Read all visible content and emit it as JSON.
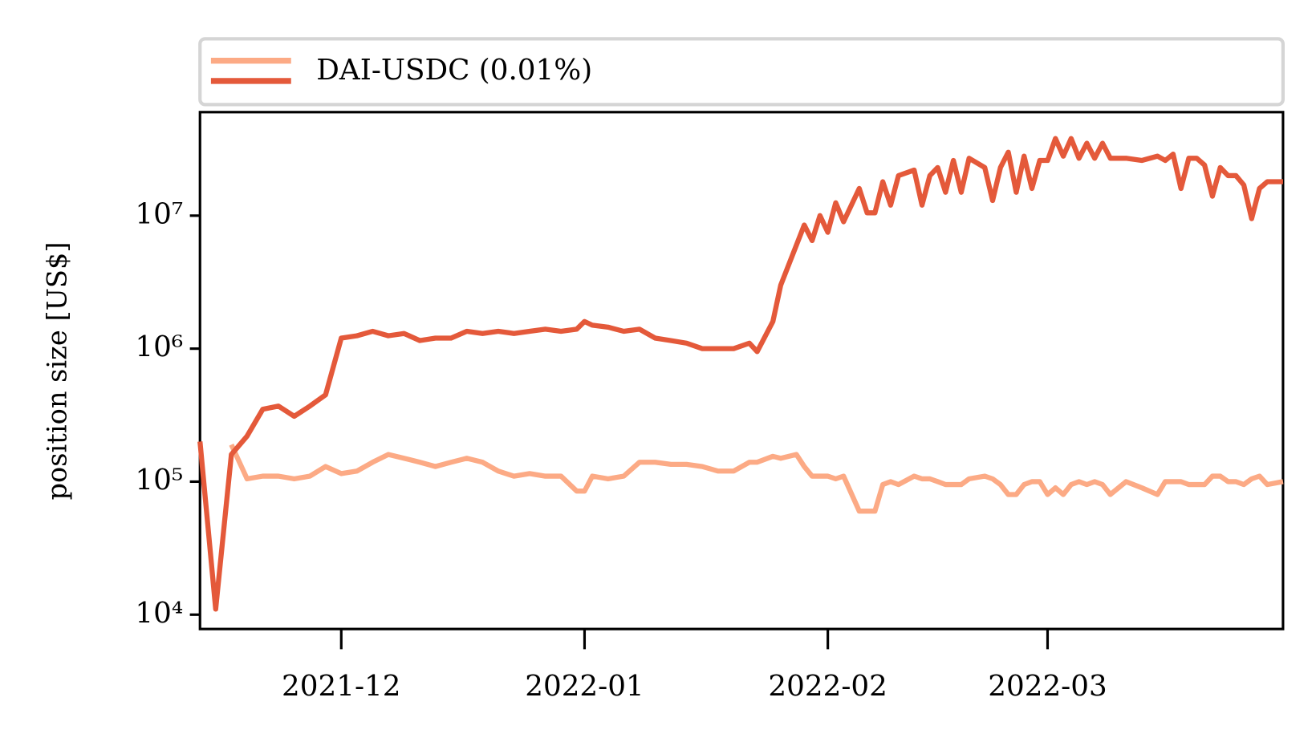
{
  "chart_data": {
    "type": "line",
    "ylabel": "position size [US$]",
    "log_y": true,
    "legend": {
      "label": "DAI-USDC (0.01%)",
      "loc": "upper outside"
    },
    "xlim": [
      "2021-11-13",
      "2022-03-31"
    ],
    "xticks": [
      {
        "value": "2021-12-01",
        "label": "2021-12"
      },
      {
        "value": "2022-01-01",
        "label": "2022-01"
      },
      {
        "value": "2022-02-01",
        "label": "2022-02"
      },
      {
        "value": "2022-03-01",
        "label": "2022-03"
      }
    ],
    "ylim": [
      7800,
      60000000
    ],
    "yticks": [
      {
        "value": 10000,
        "label": "10⁴"
      },
      {
        "value": 100000,
        "label": "10⁵"
      },
      {
        "value": 1000000,
        "label": "10⁶"
      },
      {
        "value": 10000000,
        "label": "10⁷"
      }
    ],
    "x": [
      "2021-11-13",
      "2021-11-15",
      "2021-11-17",
      "2021-11-19",
      "2021-11-21",
      "2021-11-23",
      "2021-11-25",
      "2021-11-27",
      "2021-11-29",
      "2021-12-01",
      "2021-12-03",
      "2021-12-05",
      "2021-12-07",
      "2021-12-09",
      "2021-12-11",
      "2021-12-13",
      "2021-12-15",
      "2021-12-17",
      "2021-12-19",
      "2021-12-21",
      "2021-12-23",
      "2021-12-25",
      "2021-12-27",
      "2021-12-29",
      "2021-12-31",
      "2022-01-01",
      "2022-01-02",
      "2022-01-04",
      "2022-01-06",
      "2022-01-08",
      "2022-01-10",
      "2022-01-12",
      "2022-01-14",
      "2022-01-16",
      "2022-01-18",
      "2022-01-20",
      "2022-01-22",
      "2022-01-23",
      "2022-01-25",
      "2022-01-26",
      "2022-01-28",
      "2022-01-29",
      "2022-01-30",
      "2022-01-31",
      "2022-02-01",
      "2022-02-02",
      "2022-02-03",
      "2022-02-05",
      "2022-02-06",
      "2022-02-07",
      "2022-02-08",
      "2022-02-09",
      "2022-02-10",
      "2022-02-12",
      "2022-02-13",
      "2022-02-14",
      "2022-02-15",
      "2022-02-16",
      "2022-02-17",
      "2022-02-18",
      "2022-02-19",
      "2022-02-21",
      "2022-02-22",
      "2022-02-23",
      "2022-02-24",
      "2022-02-25",
      "2022-02-26",
      "2022-02-27",
      "2022-02-28",
      "2022-03-01",
      "2022-03-02",
      "2022-03-03",
      "2022-03-04",
      "2022-03-05",
      "2022-03-06",
      "2022-03-07",
      "2022-03-08",
      "2022-03-09",
      "2022-03-11",
      "2022-03-13",
      "2022-03-15",
      "2022-03-16",
      "2022-03-17",
      "2022-03-18",
      "2022-03-19",
      "2022-03-20",
      "2022-03-21",
      "2022-03-22",
      "2022-03-23",
      "2022-03-24",
      "2022-03-25",
      "2022-03-26",
      "2022-03-27",
      "2022-03-28",
      "2022-03-29",
      "2022-03-31"
    ],
    "series": [
      {
        "color": "#fcaa85",
        "values": [
          null,
          null,
          190000,
          105000,
          110000,
          110000,
          105000,
          110000,
          130000,
          115000,
          120000,
          140000,
          160000,
          150000,
          140000,
          130000,
          140000,
          150000,
          140000,
          120000,
          110000,
          115000,
          110000,
          110000,
          85000,
          85000,
          110000,
          105000,
          110000,
          140000,
          140000,
          135000,
          135000,
          130000,
          120000,
          120000,
          140000,
          140000,
          155000,
          150000,
          160000,
          130000,
          110000,
          110000,
          110000,
          105000,
          110000,
          60000,
          60000,
          60000,
          95000,
          100000,
          95000,
          110000,
          105000,
          105000,
          100000,
          95000,
          95000,
          95000,
          105000,
          110000,
          105000,
          95000,
          80000,
          80000,
          95000,
          100000,
          100000,
          80000,
          90000,
          80000,
          95000,
          100000,
          95000,
          100000,
          95000,
          80000,
          100000,
          90000,
          80000,
          100000,
          100000,
          100000,
          95000,
          95000,
          95000,
          110000,
          110000,
          100000,
          100000,
          95000,
          105000,
          110000,
          95000,
          100000
        ]
      },
      {
        "color": "#e4593a",
        "values": [
          200000,
          11000,
          160000,
          220000,
          350000,
          370000,
          310000,
          370000,
          450000,
          1200000,
          1250000,
          1350000,
          1250000,
          1300000,
          1150000,
          1200000,
          1200000,
          1350000,
          1300000,
          1350000,
          1300000,
          1350000,
          1400000,
          1350000,
          1400000,
          1600000,
          1500000,
          1450000,
          1350000,
          1400000,
          1200000,
          1150000,
          1100000,
          1000000,
          1000000,
          1000000,
          1100000,
          950000,
          1600000,
          3000000,
          6000000,
          8500000,
          6500000,
          10000000,
          7500000,
          12500000,
          9000000,
          16000000,
          10500000,
          10500000,
          18000000,
          12000000,
          20000000,
          22000000,
          12000000,
          20000000,
          23000000,
          15000000,
          26000000,
          15000000,
          27000000,
          23000000,
          13000000,
          23000000,
          30000000,
          15000000,
          28000000,
          16000000,
          26000000,
          26000000,
          38000000,
          28000000,
          38000000,
          27000000,
          35000000,
          27000000,
          35000000,
          27000000,
          27000000,
          26000000,
          28000000,
          26000000,
          29000000,
          16000000,
          27000000,
          27000000,
          24000000,
          14000000,
          23000000,
          20000000,
          20000000,
          17000000,
          9500000,
          16000000,
          18000000,
          18000000
        ]
      }
    ]
  }
}
